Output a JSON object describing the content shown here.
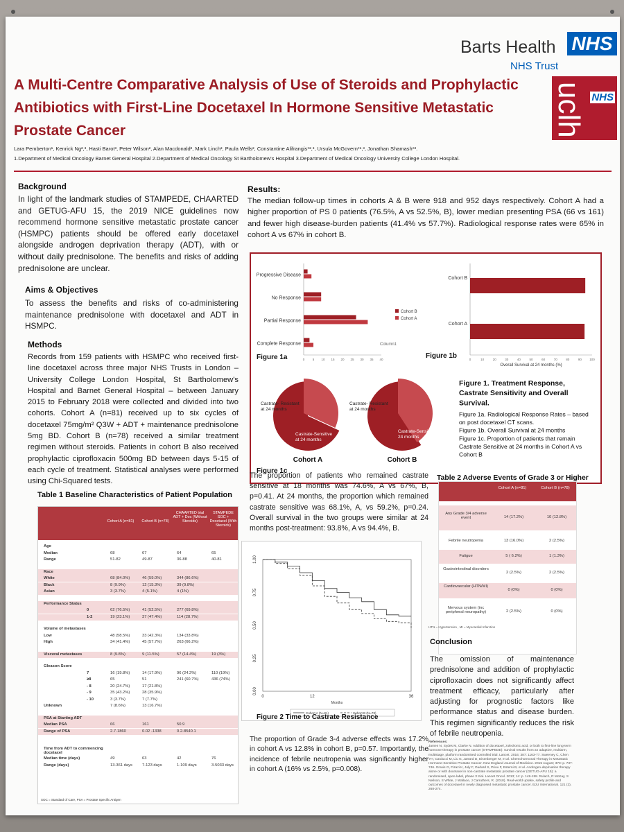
{
  "header": {
    "title": "A Multi-Centre Comparative Analysis of Use of Steroids and Prophylactic Antibiotics with First-Line Docetaxel In Hormone Sensitive Metastatic Prostate Cancer",
    "authors": "Lara Pemberton¹, Kenrick Ng²,³, Hasti Barot³, Peter Wilson², Alan Macdonald², Mark Linch³, Paula Wells², Constantine Alifrangis*²,³, Ursula McGovern*¹,³, Jonathan Shamash*².",
    "affiliations": "1.Department of Medical Oncology Barnet General Hospital 2.Department of Medical Oncology St Bartholomew's Hospital 3.Department of Medical Oncology University College London Hospital.",
    "logo_barts": "Barts Health",
    "logo_nhs": "NHS",
    "logo_trust": "NHS Trust",
    "logo_ucl": "uclh",
    "logo_ucl_nhs": "NHS"
  },
  "background": {
    "heading": "Background",
    "text": "In light of the landmark studies of STAMPEDE, CHAARTED and GETUG-AFU 15, the 2019 NICE guidelines now recommend hormone sensitive metastatic prostate cancer (HSMPC) patients should be offered early docetaxel alongside androgen deprivation therapy (ADT), with or without daily prednisolone. The benefits and risks of adding prednisolone are unclear."
  },
  "aims": {
    "heading": "Aims & Objectives",
    "text": "To assess the benefits and risks of co-administering maintenance prednisolone with docetaxel and ADT in HSMPC."
  },
  "methods": {
    "heading": "Methods",
    "text": "Records from 159 patients with HSMPC who received first-line docetaxel across three major NHS Trusts in London – University College London Hospital, St Bartholomew's Hospital and Barnet General Hospital – between January 2015 to February 2018 were collected and divided into two cohorts. Cohort A (n=81) received up to six cycles of docetaxel 75mg/m² Q3W + ADT + maintenance prednisolone 5mg BD. Cohort B (n=78) received a similar treatment regimen without steroids. Patients in cohort B also received prophylactic ciprofloxacin 500mg BD between days 5-15 of each cycle of treatment. Statistical analyses were performed using Chi-Squared tests."
  },
  "table1": {
    "title": "Table 1 Baseline Characteristics of Patient Population",
    "columns": [
      "Cohort A (n=81)",
      "Cohort B (n=78)",
      "CHAARTED trial ADT + Doc (Without Steroids)",
      "STAMPEDE SOC + Docetaxel (With Steroids)"
    ],
    "rows": [
      [
        "Age",
        "",
        "",
        "",
        ""
      ],
      [
        "Median",
        "68",
        "67",
        "64",
        "65"
      ],
      [
        "Range",
        "51-82",
        "49-87",
        "36-88",
        "40-81"
      ],
      [
        "Race",
        "",
        "",
        "",
        ""
      ],
      [
        "White",
        "68 (84.0%)",
        "46 (59.0%)",
        "344 (86.6%)",
        ""
      ],
      [
        "Black",
        "8 (9.9%)",
        "12 (15.3%)",
        "39 (9.8%)",
        ""
      ],
      [
        "Asian",
        "3 (3.7%)",
        "4 (5.1%)",
        "4 (1%)",
        ""
      ],
      [
        "Performance Status",
        "",
        "",
        "",
        ""
      ],
      [
        "0",
        "62 (76.5%)",
        "41 (52.5%)",
        "277 (69.8%)",
        ""
      ],
      [
        "1-2",
        "19 (23.1%)",
        "37 (47.4%)",
        "114 (28.7%)",
        ""
      ],
      [
        "Volume of metastases",
        "",
        "",
        "",
        ""
      ],
      [
        "Low",
        "48 (58.5%)",
        "33 (42.3%)",
        "134 (33.8%)",
        ""
      ],
      [
        "High",
        "34 (41.4%)",
        "45 (57.7%)",
        "263 (66.2%)",
        ""
      ],
      [
        "Visceral metastases",
        "8 (9.8%)",
        "9 (11.5%)",
        "57 (14.4%)",
        "19 (3%)"
      ],
      [
        "Gleason Score",
        "",
        "",
        "",
        ""
      ],
      [
        "7",
        "16 (19.8%)",
        "14 (17.9%)",
        "96 (24.2%)",
        "110 (19%)"
      ],
      [
        "≥8",
        "65",
        "51",
        "241 (60.7%)",
        "436 (74%)"
      ],
      [
        "- 8",
        "20 (24.7%)",
        "17 (21.8%)",
        "",
        ""
      ],
      [
        "- 9",
        "35 (43.2%)",
        "28 (35.9%)",
        "",
        ""
      ],
      [
        "- 10",
        "3 (3.7%)",
        "7 (7.7%)",
        "",
        ""
      ],
      [
        "Unknown",
        "7 (8.6%)",
        "13 (16.7%)",
        "",
        ""
      ],
      [
        "PSA at Starting ADT",
        "",
        "",
        "",
        ""
      ],
      [
        "Median PSA",
        "66",
        "161",
        "50.9",
        ""
      ],
      [
        "Range of PSA",
        "2.7-1860",
        "0.02 -1338",
        "0.2-8540.1",
        ""
      ],
      [
        "Time from ADT to commencing docetaxel",
        "",
        "",
        "",
        ""
      ],
      [
        "Median time (days)",
        "49",
        "63",
        "42",
        "76"
      ],
      [
        "Range (days)",
        "13-361 days",
        "7-123 days",
        "1-109 days",
        "3-5033 days"
      ]
    ],
    "footnote": "SOC = Standard of Care, PSA = Prostate Specific Antigen"
  },
  "results": {
    "heading": "Results:",
    "text": "The median follow-up times in cohorts A & B were 918 and 952 days respectively. Cohort A had a higher proportion of PS 0 patients (76.5%, A vs 52.5%, B), lower median presenting PSA (66 vs 161) and fewer high disease-burden patients (41.4% vs 57.7%). Radiological response rates were 65% in cohort A vs 67% in cohort B.",
    "castrate_text": "The proportion of patients who remained castrate sensitive at 18 months was 74.6%, A vs 67%, B, p=0.41. At 24 months, the proportion which remained castrate sensitive was 68.1%, A, vs 59.2%, p=0.24. Overall survival in the two groups were similar at 24 months post-treatment: 93.8%, A vs 94.4%, B.",
    "adverse_text": "The proportion of Grade 3-4 adverse effects was 17.2% in cohort A vs 12.8% in cohort B, p=0.57. Importantly, the incidence of febrile neutropenia was significantly higher in cohort A (16% vs 2.5%, p=0.008)."
  },
  "figure1": {
    "label_1a": "Figure 1a",
    "label_1b": "Figure 1b",
    "label_1c": "Figure 1c",
    "caption_title": "Figure 1. Treatment Response, Castrate Sensitivity and Overall Survival.",
    "caption_1a_label": "Figure 1a.",
    "caption_1a": " Radiological Response Rates – based on post docetaxel CT scans.",
    "caption_1b_label": "Figure 1b.",
    "caption_1b": " Overall Survival at 24 months",
    "caption_1c_label": "Figure 1c.",
    "caption_1c": " Proportion of patients that remain Castrate Sensitive at 24 months in Cohort A vs Cohort B",
    "legend_b": "Cohort B",
    "legend_a": "Cohort A",
    "column1": "Column1",
    "os_xlabel": "Overall Survival at 24 months (%)",
    "pie_a_label": "Cohort A",
    "pie_b_label": "Cohort B",
    "pie_resistant": "Castrate- Resistant at 24 months",
    "pie_sensitive": "Castrate-Sensitive at 24 months",
    "colors": {
      "cohort_a": "#c0393f",
      "cohort_b": "#9e1f25"
    }
  },
  "figure2": {
    "caption": "Figure 2 Time to Castrate Resistance",
    "xlabel": "Months",
    "legend_a": "Cohort A (N=81)",
    "legend_b": "Cohort B (N=78)"
  },
  "table2": {
    "title": "Table 2 Adverse Events of Grade 3 or Higher",
    "columns": [
      "Cohort A (n=81)",
      "Cohort B (n=78)"
    ],
    "rows": [
      [
        "Any Grade 3/4 adverse event",
        "14 (17.2%)",
        "10 (12.8%)"
      ],
      [
        "Febrile neutropenia",
        "13 (16.0%)",
        "2 (2.5%)"
      ],
      [
        "Fatigue",
        "5 ( 6.2%)",
        "1 (1.3%)"
      ],
      [
        "Gastrointestinal disorders",
        "2 (2.5%)",
        "2 (2.5%)"
      ],
      [
        "Cardiovascular (HTN/MI)",
        "0 (0%)",
        "0 (0%)"
      ],
      [
        "Nervous system (inc peripheral neuropathy)",
        "2 (2.5%)",
        "0 (0%)"
      ]
    ],
    "footnote": "HTN = Hypertension , MI = Myocardial Infarction"
  },
  "conclusion": {
    "heading": "Conclusion",
    "text": "The omission of maintenance prednisolone and addition of prophylactic ciprofloxacin does not significantly affect treatment efficacy, particularly after adjusting for prognostic factors like performance status and disease burden. This regimen significantly reduces the risk of febrile neutropenia."
  },
  "references": {
    "heading": "References:",
    "text": "James N, Sydes M, Clarke N. Addition of docetaxel, zoledronic acid, or both to first-line long-term hormone therapy in prostate cancer (STAMPEDE): survival results from an adaptive, multiarm, multistage, platform randomised controlled trial. Lancet. 2016; 387: 1163-77. Sweeney C, Chen YH, Carducci M, Liu G, Jarrard D, Eisenberger M, et al. Chemohormonal Therapy in Metastatic Hormone-Sensitive Prostate Cancer. New England Journal of Medicine. 2015 August; 373: p. 737-746. Gravis G, Fizazi K, Joly F, Oudard S, Priou F, Esterni B, et al. Androgen-deprivation therapy alone or with docetaxel in non-castrate metastatic prostate cancer (GETUG-AFU 15): a randomised, open-label, phase 3 trial. Lancet Oncol. 2013; 14: p. 149-158. Rulach, R McKay, S Neilson, S White, J Wallace, J Carruthers, R. (2018). Real-world uptake, safety profile and outcomes of docetaxel in newly diagnosed metastatic prostate cancer. BJU International. 121 (2), 268-274."
  },
  "chart_data": [
    {
      "type": "bar",
      "title": "Figure 1a",
      "orientation": "horizontal",
      "categories": [
        "Progressive Disease",
        "No Response",
        "Partial Response",
        "Complete Response"
      ],
      "series": [
        {
          "name": "Cohort B",
          "values": [
            2,
            9,
            27,
            3
          ]
        },
        {
          "name": "Cohort A",
          "values": [
            4,
            9,
            33,
            5
          ]
        }
      ],
      "xlim": [
        0,
        40
      ],
      "xticks": [
        "0",
        "5",
        "10",
        "15",
        "20",
        "25",
        "30",
        "35",
        "40"
      ],
      "legend": "right"
    },
    {
      "type": "bar",
      "title": "Figure 1b",
      "orientation": "horizontal",
      "categories": [
        "Cohort B",
        "Cohort A"
      ],
      "values": [
        94.4,
        93.8
      ],
      "xlabel": "Overall Survival at 24 months (%)",
      "xlim": [
        0,
        100
      ],
      "xticks": [
        "0",
        "10",
        "20",
        "30",
        "40",
        "50",
        "60",
        "70",
        "80",
        "90",
        "100"
      ]
    },
    {
      "type": "pie",
      "title": "Cohort A",
      "labels": [
        "Castrate-Sensitive at 24 months",
        "Castrate- Resistant at 24 months"
      ],
      "values": [
        68.1,
        31.9
      ]
    },
    {
      "type": "pie",
      "title": "Cohort B",
      "labels": [
        "Castrate-Sensitive at 24 months",
        "Castrate- Resistant at 24 months"
      ],
      "values": [
        59.2,
        40.8
      ]
    },
    {
      "type": "line",
      "title": "Figure 2 Time to Castrate Resistance",
      "xlabel": "Months",
      "xlim": [
        0,
        36
      ],
      "ylim": [
        0,
        1
      ],
      "xticks": [
        "0",
        "12",
        "36"
      ],
      "yticks": [
        "0.00",
        "0.25",
        "0.50",
        "0.75",
        "1.00"
      ],
      "series": [
        {
          "name": "Cohort A (N=81)",
          "x": [
            0,
            3,
            6,
            9,
            12,
            15,
            18,
            21,
            24,
            27,
            30,
            33,
            36
          ],
          "y": [
            1.0,
            0.98,
            0.95,
            0.9,
            0.84,
            0.78,
            0.75,
            0.71,
            0.68,
            0.62,
            0.58,
            0.57,
            0.57
          ]
        },
        {
          "name": "Cohort B (N=78)",
          "x": [
            0,
            3,
            6,
            9,
            12,
            15,
            18,
            21,
            24,
            27,
            30,
            33,
            36
          ],
          "y": [
            1.0,
            0.97,
            0.93,
            0.88,
            0.8,
            0.72,
            0.67,
            0.62,
            0.59,
            0.55,
            0.53,
            0.52,
            0.48
          ]
        }
      ]
    }
  ]
}
